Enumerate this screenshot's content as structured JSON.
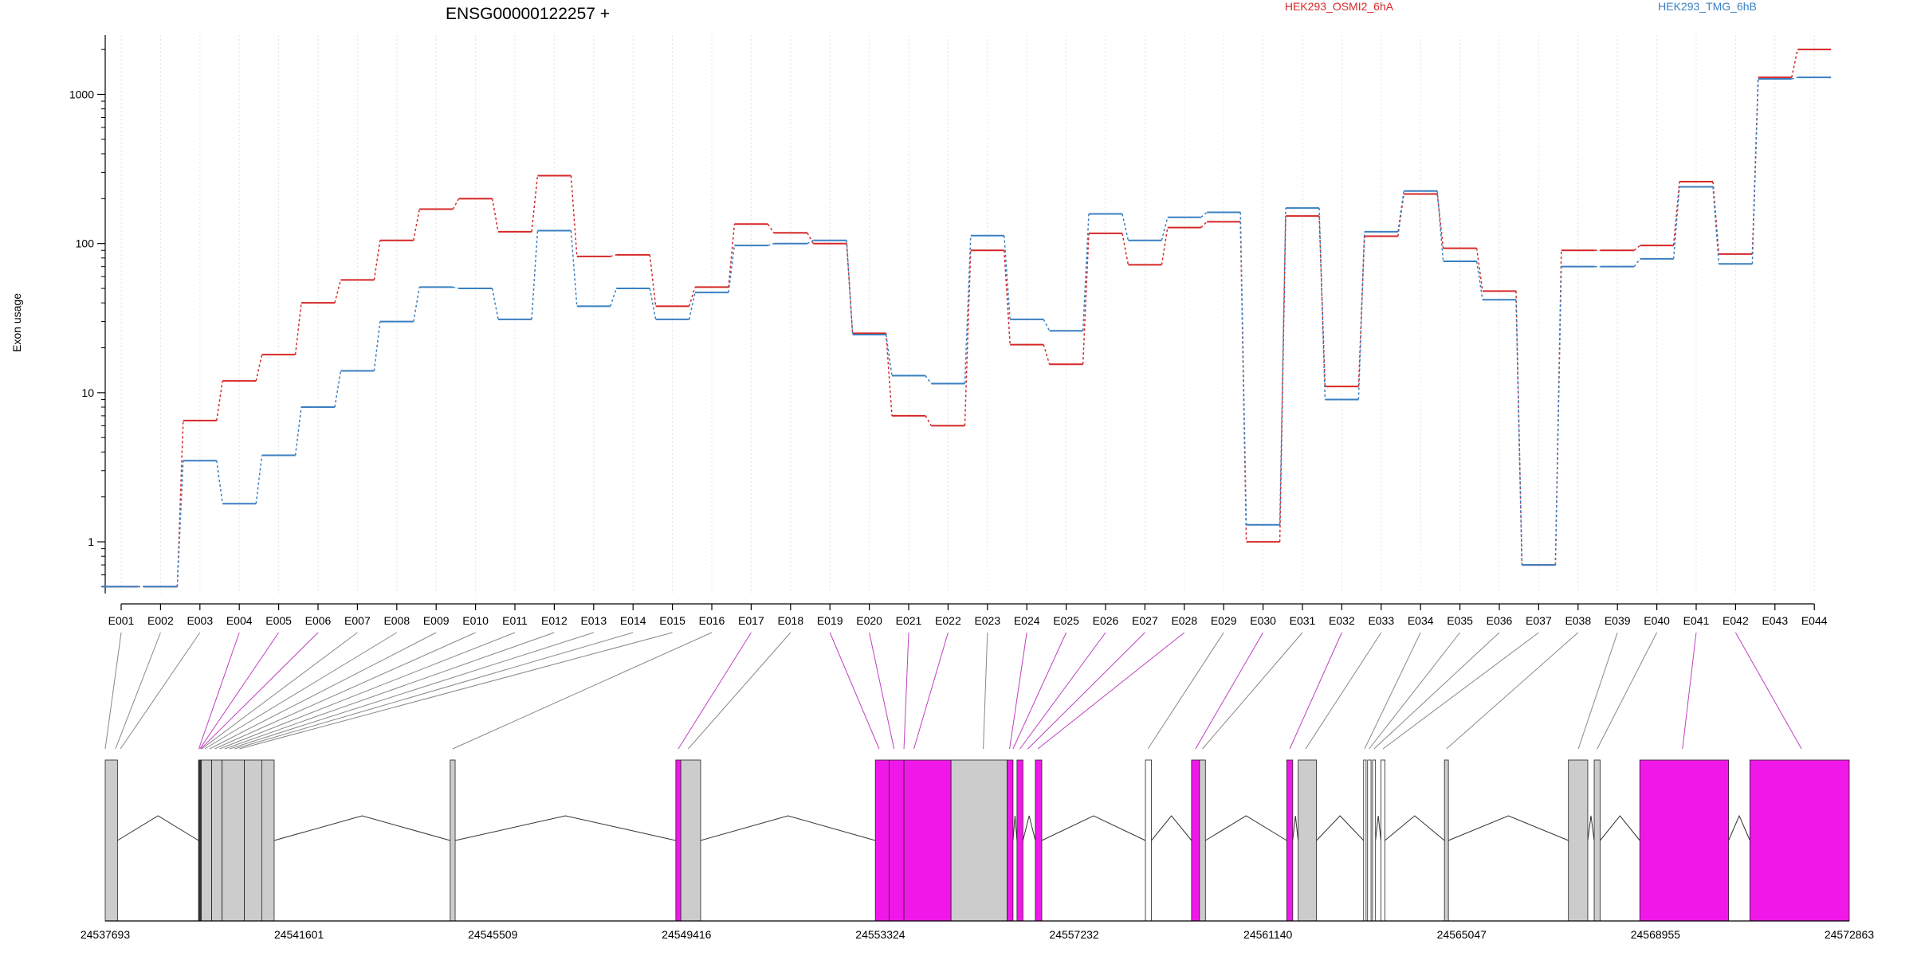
{
  "chart_data": {
    "type": "line",
    "title": "ENSG00000122257 +",
    "xlabel": "",
    "ylabel": "Exon usage",
    "y_scale": "log",
    "ylim": [
      0.45,
      2500
    ],
    "y_ticks": [
      1,
      10,
      100,
      1000
    ],
    "y_tick_labels": [
      "1",
      "10",
      "100",
      "1000"
    ],
    "grid": "vertical dotted lines at exons",
    "legend_placement": "top-right",
    "categories": [
      "E001",
      "E002",
      "E003",
      "E004",
      "E005",
      "E006",
      "E007",
      "E008",
      "E009",
      "E010",
      "E011",
      "E012",
      "E013",
      "E014",
      "E015",
      "E016",
      "E017",
      "E018",
      "E019",
      "E020",
      "E021",
      "E022",
      "E023",
      "E024",
      "E025",
      "E026",
      "E027",
      "E028",
      "E029",
      "E030",
      "E031",
      "E032",
      "E033",
      "E034",
      "E035",
      "E036",
      "E037",
      "E038",
      "E039",
      "E040",
      "E041",
      "E042",
      "E043",
      "E044"
    ],
    "series": [
      {
        "name": "HEK293_OSMI2_6hA",
        "color": "#d62728",
        "values": [
          0.5,
          0.5,
          6.5,
          12,
          18,
          40,
          57,
          105,
          170,
          200,
          120,
          285,
          82,
          84,
          38,
          51,
          135,
          118,
          100,
          25,
          7,
          6,
          90,
          21,
          15.5,
          117,
          72,
          128,
          140,
          1,
          153,
          11,
          112,
          215,
          93,
          48,
          0.7,
          90,
          90,
          97,
          260,
          85,
          1300,
          2000
        ]
      },
      {
        "name": "HEK293_TMG_6hB",
        "color": "#3a7fc1",
        "values": [
          0.5,
          0.5,
          3.5,
          1.8,
          3.8,
          8,
          14,
          30,
          51,
          50,
          31,
          122,
          38,
          50,
          31,
          47,
          97,
          100,
          105,
          24.5,
          13,
          11.5,
          113,
          31,
          26,
          158,
          105,
          150,
          162,
          1.3,
          173,
          9,
          120,
          225,
          76,
          42,
          0.7,
          70,
          70,
          79,
          240,
          73,
          1270,
          1300
        ]
      }
    ],
    "gene_model": {
      "x_tick_labels": [
        "24537693",
        "24541601",
        "24545509",
        "24549416",
        "24553324",
        "24557232",
        "24561140",
        "24565047",
        "24568955",
        "24572863"
      ],
      "start": 24537693,
      "end": 24572863,
      "highlight_color": "#f018e8",
      "gray_color": "#cccccc",
      "exons": [
        {
          "s": 24537693,
          "e": 24537940,
          "c": "gray"
        },
        {
          "s": 24539575,
          "e": 24539630,
          "c": "dark"
        },
        {
          "s": 24539630,
          "e": 24539840,
          "c": "gray"
        },
        {
          "s": 24539840,
          "e": 24540050,
          "c": "gray"
        },
        {
          "s": 24540050,
          "e": 24540500,
          "c": "gray"
        },
        {
          "s": 24540500,
          "e": 24540850,
          "c": "gray"
        },
        {
          "s": 24540850,
          "e": 24541100,
          "c": "gray"
        },
        {
          "s": 24544650,
          "e": 24544750,
          "c": "gray"
        },
        {
          "s": 24549200,
          "e": 24549300,
          "c": "hl"
        },
        {
          "s": 24549300,
          "e": 24549700,
          "c": "gray"
        },
        {
          "s": 24553224,
          "e": 24553500,
          "c": "hl"
        },
        {
          "s": 24553500,
          "e": 24553800,
          "c": "hl"
        },
        {
          "s": 24553800,
          "e": 24554750,
          "c": "hl"
        },
        {
          "s": 24554750,
          "e": 24555880,
          "c": "gray"
        },
        {
          "s": 24555880,
          "e": 24556000,
          "c": "hl"
        },
        {
          "s": 24556080,
          "e": 24556200,
          "c": "hl"
        },
        {
          "s": 24556450,
          "e": 24556580,
          "c": "hl"
        },
        {
          "s": 24558670,
          "e": 24558790,
          "c": "white"
        },
        {
          "s": 24559600,
          "e": 24559760,
          "c": "hl"
        },
        {
          "s": 24559760,
          "e": 24559880,
          "c": "gray"
        },
        {
          "s": 24561520,
          "e": 24561640,
          "c": "hl"
        },
        {
          "s": 24561750,
          "e": 24562120,
          "c": "gray"
        },
        {
          "s": 24563070,
          "e": 24563120,
          "c": "white"
        },
        {
          "s": 24563150,
          "e": 24563220,
          "c": "white"
        },
        {
          "s": 24563250,
          "e": 24563310,
          "c": "white"
        },
        {
          "s": 24563420,
          "e": 24563500,
          "c": "white"
        },
        {
          "s": 24564700,
          "e": 24564780,
          "c": "gray"
        },
        {
          "s": 24567200,
          "e": 24567590,
          "c": "gray"
        },
        {
          "s": 24567720,
          "e": 24567840,
          "c": "gray"
        },
        {
          "s": 24568640,
          "e": 24570430,
          "c": "hl"
        },
        {
          "s": 24570860,
          "e": 24572863,
          "c": "hl"
        }
      ],
      "connectors": [
        [
          24537693,
          "gray"
        ],
        [
          24537900,
          "gray"
        ],
        [
          24538000,
          "gray"
        ],
        [
          24539580,
          "hl"
        ],
        [
          24539600,
          "hl"
        ],
        [
          24539620,
          "hl"
        ],
        [
          24539640,
          "gray"
        ],
        [
          24539700,
          "gray"
        ],
        [
          24539800,
          "gray"
        ],
        [
          24539900,
          "gray"
        ],
        [
          24540000,
          "gray"
        ],
        [
          24540100,
          "gray"
        ],
        [
          24540200,
          "gray"
        ],
        [
          24540300,
          "gray"
        ],
        [
          24540400,
          "gray"
        ],
        [
          24544700,
          "gray"
        ],
        [
          24549250,
          "hl"
        ],
        [
          24549450,
          "gray"
        ],
        [
          24553300,
          "hl"
        ],
        [
          24553600,
          "hl"
        ],
        [
          24553800,
          "hl"
        ],
        [
          24554000,
          "hl"
        ],
        [
          24555400,
          "gray"
        ],
        [
          24555930,
          "hl"
        ],
        [
          24556000,
          "hl"
        ],
        [
          24556140,
          "hl"
        ],
        [
          24556300,
          "hl"
        ],
        [
          24556500,
          "hl"
        ],
        [
          24558720,
          "gray"
        ],
        [
          24559680,
          "hl"
        ],
        [
          24559820,
          "gray"
        ],
        [
          24561580,
          "hl"
        ],
        [
          24561900,
          "gray"
        ],
        [
          24563090,
          "gray"
        ],
        [
          24563180,
          "gray"
        ],
        [
          24563280,
          "gray"
        ],
        [
          24563460,
          "gray"
        ],
        [
          24564740,
          "gray"
        ],
        [
          24567400,
          "gray"
        ],
        [
          24567780,
          "gray"
        ],
        [
          24569500,
          "hl"
        ],
        [
          24571900,
          "hl"
        ]
      ]
    }
  }
}
